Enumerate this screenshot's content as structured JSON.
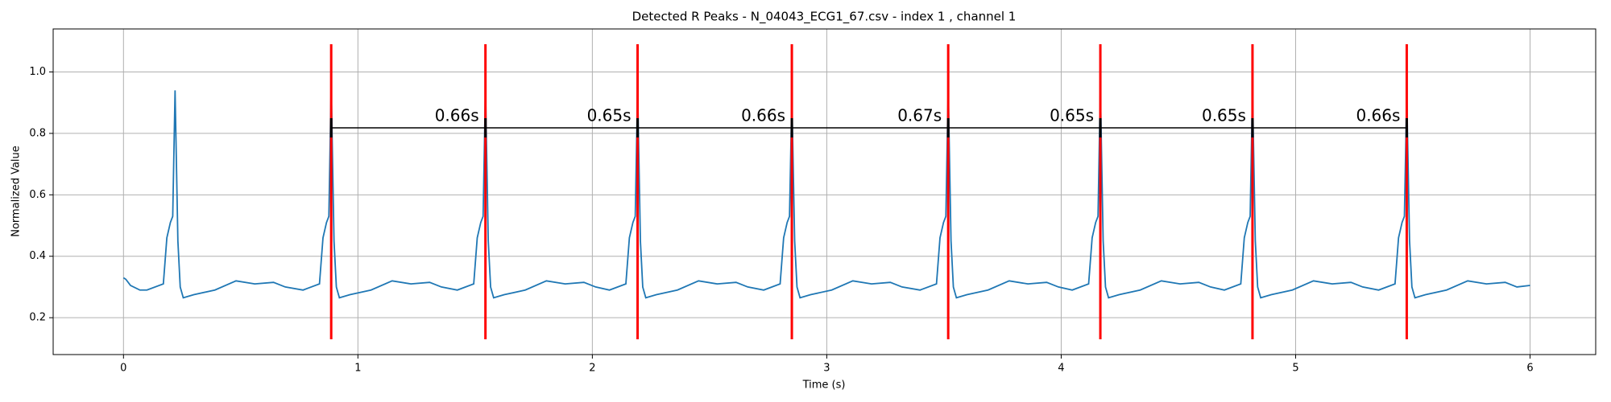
{
  "chart_data": {
    "type": "line",
    "title": "Detected R Peaks - N_04043_ECG1_67.csv - index 1 , channel 1",
    "x_label": "Time (s)",
    "y_label": "Normalized Value",
    "color": "#1f77b4",
    "peak_color": "#ff0000",
    "grid": true,
    "xlim": [
      -0.3,
      6.28
    ],
    "ylim": [
      0.08,
      1.14
    ],
    "xticks": [
      0,
      1,
      2,
      3,
      4,
      5,
      6
    ],
    "yticks": [
      0.2,
      0.4,
      0.6,
      0.8,
      {
        "value": 1,
        "label": "1.0"
      }
    ],
    "x": [
      0,
      0.01,
      0.03,
      0.07,
      0.1,
      0.17,
      0.185,
      0.2,
      0.21,
      0.22,
      0.232,
      0.242,
      0.255,
      0.3,
      0.39,
      0.48,
      0.56,
      0.64,
      0.69,
      0.766,
      0.836,
      0.851,
      0.866,
      0.876,
      0.886,
      0.898,
      0.908,
      0.921,
      0.966,
      1.056,
      1.146,
      1.226,
      1.306,
      1.356,
      1.424,
      1.494,
      1.509,
      1.524,
      1.534,
      1.544,
      1.556,
      1.566,
      1.579,
      1.624,
      1.714,
      1.804,
      1.884,
      1.964,
      2.014,
      2.073,
      2.143,
      2.158,
      2.173,
      2.183,
      2.193,
      2.205,
      2.215,
      2.228,
      2.273,
      2.363,
      2.453,
      2.533,
      2.613,
      2.663,
      2.731,
      2.801,
      2.816,
      2.831,
      2.841,
      2.851,
      2.863,
      2.873,
      2.886,
      2.931,
      3.021,
      3.111,
      3.191,
      3.271,
      3.321,
      3.398,
      3.468,
      3.483,
      3.498,
      3.508,
      3.518,
      3.53,
      3.54,
      3.553,
      3.598,
      3.688,
      3.778,
      3.858,
      3.938,
      3.988,
      4.047,
      4.117,
      4.132,
      4.147,
      4.157,
      4.167,
      4.179,
      4.189,
      4.202,
      4.247,
      4.337,
      4.427,
      4.507,
      4.587,
      4.637,
      4.696,
      4.766,
      4.781,
      4.796,
      4.806,
      4.816,
      4.828,
      4.838,
      4.851,
      4.896,
      4.986,
      5.076,
      5.156,
      5.236,
      5.286,
      5.354,
      5.424,
      5.439,
      5.454,
      5.464,
      5.474,
      5.486,
      5.496,
      5.509,
      5.554,
      5.644,
      5.734,
      5.814,
      5.894,
      5.944,
      6.0
    ],
    "values": [
      0.33,
      0.325,
      0.305,
      0.29,
      0.29,
      0.31,
      0.46,
      0.51,
      0.53,
      0.94,
      0.45,
      0.3,
      0.265,
      0.275,
      0.29,
      0.32,
      0.31,
      0.315,
      0.3,
      0.29,
      0.31,
      0.46,
      0.51,
      0.53,
      0.96,
      0.45,
      0.3,
      0.265,
      0.275,
      0.29,
      0.32,
      0.31,
      0.315,
      0.3,
      0.29,
      0.31,
      0.46,
      0.51,
      0.53,
      0.95,
      0.45,
      0.3,
      0.265,
      0.275,
      0.29,
      0.32,
      0.31,
      0.315,
      0.3,
      0.29,
      0.31,
      0.46,
      0.51,
      0.53,
      0.95,
      0.45,
      0.3,
      0.265,
      0.275,
      0.29,
      0.32,
      0.31,
      0.315,
      0.3,
      0.29,
      0.31,
      0.46,
      0.51,
      0.53,
      0.92,
      0.45,
      0.3,
      0.265,
      0.275,
      0.29,
      0.32,
      0.31,
      0.315,
      0.3,
      0.29,
      0.31,
      0.46,
      0.51,
      0.53,
      0.95,
      0.45,
      0.3,
      0.265,
      0.275,
      0.29,
      0.32,
      0.31,
      0.315,
      0.3,
      0.29,
      0.31,
      0.46,
      0.51,
      0.53,
      0.95,
      0.45,
      0.3,
      0.265,
      0.275,
      0.29,
      0.32,
      0.31,
      0.315,
      0.3,
      0.29,
      0.31,
      0.46,
      0.51,
      0.53,
      0.94,
      0.45,
      0.3,
      0.265,
      0.275,
      0.29,
      0.32,
      0.31,
      0.315,
      0.3,
      0.29,
      0.31,
      0.46,
      0.51,
      0.53,
      0.93,
      0.45,
      0.3,
      0.265,
      0.275,
      0.29,
      0.32,
      0.31,
      0.315,
      0.3,
      0.305
    ],
    "r_peaks": [
      0.886,
      1.544,
      2.193,
      2.851,
      3.518,
      4.167,
      4.816,
      5.474
    ],
    "interval_labels": [
      "0.66s",
      "0.65s",
      "0.66s",
      "0.67s",
      "0.65s",
      "0.65s",
      "0.66s"
    ]
  }
}
